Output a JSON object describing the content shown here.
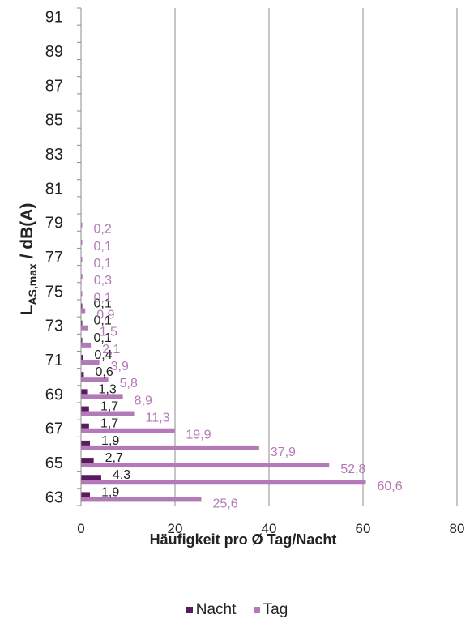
{
  "chart_data": {
    "type": "bar",
    "orientation": "horizontal",
    "xlabel": "Häufigkeit pro Ø Tag/Nacht",
    "ylabel_main": "L",
    "ylabel_sub": "AS,max",
    "ylabel_rest": " / dB(A)",
    "xlim": [
      0,
      80
    ],
    "x_ticks": [
      "0",
      "20",
      "40",
      "60",
      "80"
    ],
    "y_tick_labels": [
      "63",
      "65",
      "67",
      "69",
      "71",
      "73",
      "75",
      "77",
      "79",
      "81",
      "83",
      "85",
      "87",
      "89",
      "91"
    ],
    "categories": [
      "63",
      "64",
      "65",
      "66",
      "67",
      "68",
      "69",
      "70",
      "71",
      "72",
      "73",
      "74",
      "75",
      "76",
      "77",
      "78",
      "79",
      "80",
      "81",
      "82",
      "83",
      "84",
      "85",
      "86",
      "87",
      "88",
      "89",
      "90",
      "91"
    ],
    "grid": "vertical",
    "legend_position": "bottom",
    "series": [
      {
        "name": "Nacht",
        "color": "#5a1a5e",
        "values": [
          1.9,
          4.3,
          2.7,
          1.9,
          1.7,
          1.7,
          1.3,
          0.6,
          0.4,
          0.1,
          0.1,
          0.1,
          null,
          null,
          null,
          null,
          null,
          null,
          null,
          null,
          null,
          null,
          null,
          null,
          null,
          null,
          null,
          null,
          null
        ],
        "labels": [
          "1,9",
          "4,3",
          "2,7",
          "1,9",
          "1,7",
          "1,7",
          "1,3",
          "0,6",
          "0,4",
          "0,1",
          "0,1",
          "0,1",
          "",
          "",
          "",
          "",
          "",
          "",
          "",
          "",
          "",
          "",
          "",
          "",
          "",
          "",
          "",
          "",
          ""
        ]
      },
      {
        "name": "Tag",
        "color": "#b479b8",
        "values": [
          25.6,
          60.6,
          52.8,
          37.9,
          19.9,
          11.3,
          8.9,
          5.8,
          3.9,
          2.1,
          1.5,
          0.9,
          0.1,
          0.3,
          0.1,
          0.1,
          0.2,
          null,
          null,
          null,
          null,
          null,
          null,
          null,
          null,
          null,
          null,
          null,
          null
        ],
        "labels": [
          "25,6",
          "60,6",
          "52,8",
          "37,9",
          "19,9",
          "11,3",
          "8,9",
          "5,8",
          "3,9",
          "2,1",
          "1,5",
          "0,9",
          "0,1",
          "0,3",
          "0,1",
          "0,1",
          "0,2",
          "",
          "",
          "",
          "",
          "",
          "",
          "",
          "",
          "",
          "",
          "",
          ""
        ]
      }
    ]
  }
}
